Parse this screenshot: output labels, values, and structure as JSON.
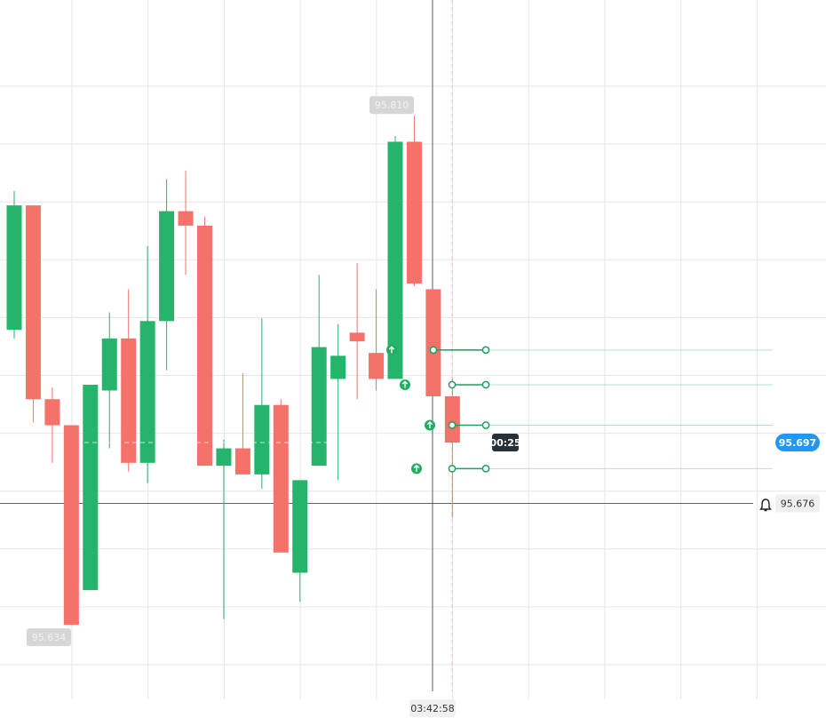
{
  "chart_data": {
    "type": "candlestick",
    "open": [
      95.736,
      95.779,
      95.712,
      95.703,
      95.646,
      95.715,
      95.733,
      95.69,
      95.739,
      95.777,
      95.772,
      95.689,
      95.695,
      95.686,
      95.71,
      95.652,
      95.689,
      95.719,
      95.735,
      95.728,
      95.719,
      95.801,
      95.75,
      95.713
    ],
    "high": [
      95.784,
      95.779,
      95.716,
      95.703,
      95.717,
      95.742,
      95.75,
      95.765,
      95.788,
      95.791,
      95.775,
      95.698,
      95.721,
      95.74,
      95.712,
      95.684,
      95.755,
      95.738,
      95.759,
      95.75,
      95.803,
      95.81,
      95.75,
      95.719
    ],
    "low": [
      95.733,
      95.704,
      95.69,
      95.634,
      95.646,
      95.695,
      95.687,
      95.683,
      95.722,
      95.755,
      95.689,
      95.636,
      95.686,
      95.681,
      95.659,
      95.642,
      95.689,
      95.684,
      95.712,
      95.715,
      95.719,
      95.751,
      95.713,
      95.671
    ],
    "close": [
      95.779,
      95.712,
      95.703,
      95.634,
      95.717,
      95.733,
      95.69,
      95.739,
      95.777,
      95.772,
      95.689,
      95.695,
      95.686,
      95.71,
      95.659,
      95.684,
      95.73,
      95.727,
      95.732,
      95.719,
      95.801,
      95.752,
      95.713,
      95.697
    ],
    "up_color": "#26b36b",
    "down_color": "#f5726a",
    "ylim": [
      95.611,
      95.85
    ],
    "trades": [
      95.729,
      95.717,
      95.703,
      95.688
    ],
    "high_label": {
      "value": 95.81,
      "label": "95.810"
    },
    "low_label": {
      "value": 95.634,
      "label": "95.634"
    },
    "last_price": 95.697,
    "timer": "00:25",
    "crosshair_price": 95.676,
    "crosshair_time": "03:42:58"
  }
}
